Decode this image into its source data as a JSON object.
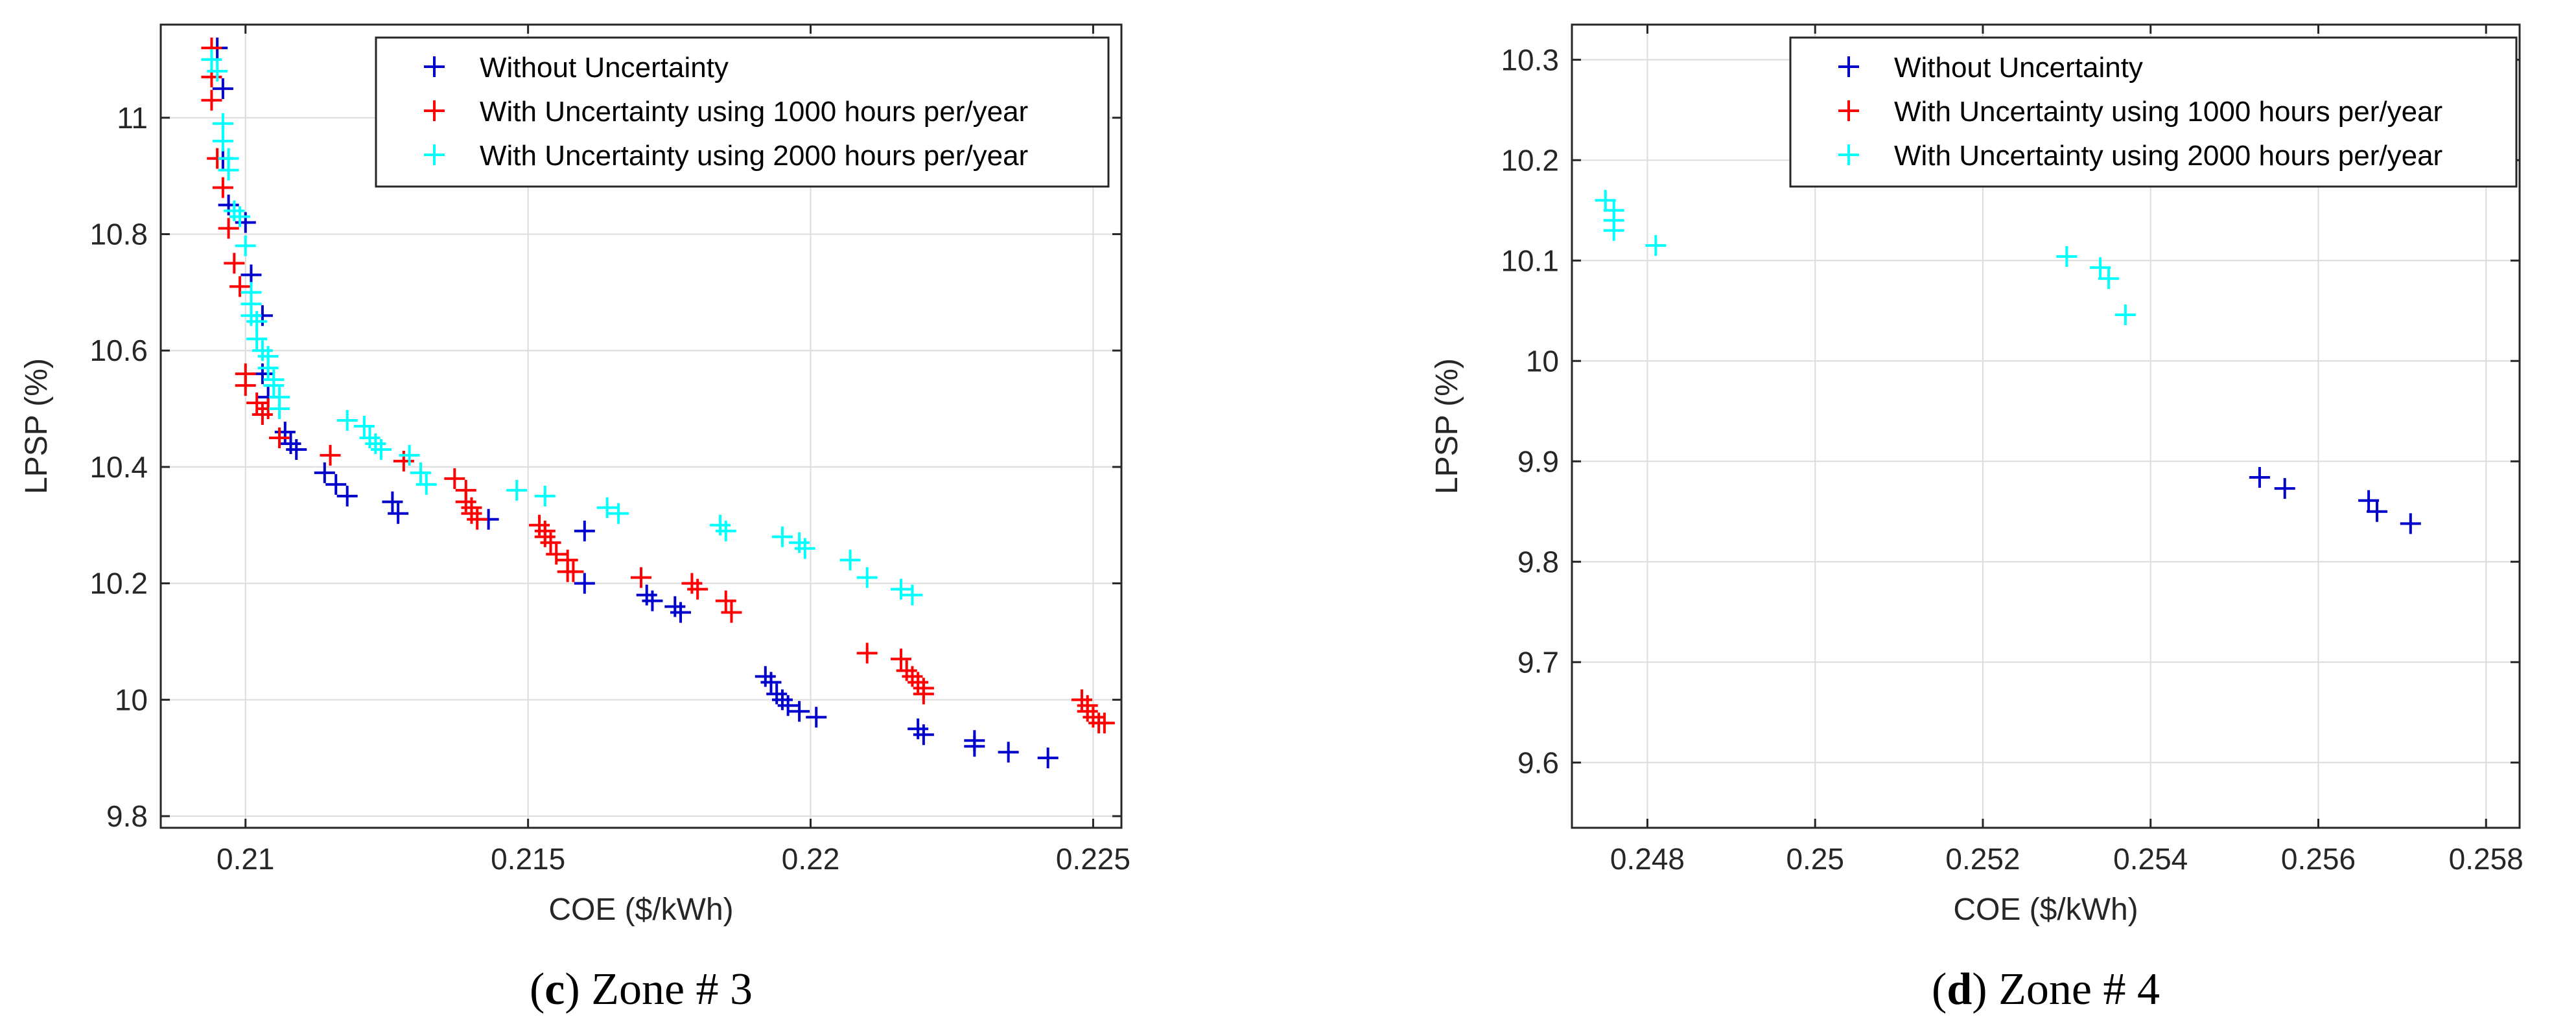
{
  "figure": {
    "legend_labels": [
      "Without Uncertainty",
      "With Uncertainty using 1000 hours per/year",
      "With Uncertainty using 2000 hours per/year"
    ],
    "series_colors": [
      "#0000cc",
      "#ff0000",
      "#00ffff"
    ]
  },
  "chart_data": [
    {
      "type": "scatter",
      "caption": {
        "letter": "c",
        "text": "Zone # 3"
      },
      "xlabel": "COE ($/kWh)",
      "ylabel": "LPSP (%)",
      "xlim": [
        0.2085,
        0.2255
      ],
      "ylim": [
        9.78,
        11.16
      ],
      "xticks": [
        0.21,
        0.215,
        0.22,
        0.225
      ],
      "xtick_labels": [
        "0.21",
        "0.215",
        "0.22",
        "0.225"
      ],
      "yticks": [
        9.8,
        10,
        10.2,
        10.4,
        10.6,
        10.8,
        11
      ],
      "ytick_labels": [
        "9.8",
        "10",
        "10.2",
        "10.4",
        "10.6",
        "10.8",
        "11"
      ],
      "grid": true,
      "legend_position": "top-right",
      "series": [
        {
          "name": "Without Uncertainty",
          "color": "#0000cc",
          "points": [
            [
              0.2095,
              11.12
            ],
            [
              0.2096,
              11.05
            ],
            [
              0.2096,
              10.93
            ],
            [
              0.2097,
              10.85
            ],
            [
              0.21,
              10.82
            ],
            [
              0.2101,
              10.73
            ],
            [
              0.2103,
              10.66
            ],
            [
              0.2103,
              10.56
            ],
            [
              0.2104,
              10.52
            ],
            [
              0.2107,
              10.46
            ],
            [
              0.2108,
              10.44
            ],
            [
              0.2109,
              10.43
            ],
            [
              0.2114,
              10.39
            ],
            [
              0.2116,
              10.37
            ],
            [
              0.2118,
              10.35
            ],
            [
              0.2126,
              10.34
            ],
            [
              0.2127,
              10.32
            ],
            [
              0.2143,
              10.31
            ],
            [
              0.216,
              10.29
            ],
            [
              0.216,
              10.2
            ],
            [
              0.2171,
              10.18
            ],
            [
              0.2172,
              10.17
            ],
            [
              0.2176,
              10.16
            ],
            [
              0.2177,
              10.15
            ],
            [
              0.2192,
              10.04
            ],
            [
              0.2193,
              10.03
            ],
            [
              0.2194,
              10.01
            ],
            [
              0.2195,
              10.0
            ],
            [
              0.2196,
              9.99
            ],
            [
              0.2198,
              9.98
            ],
            [
              0.2201,
              9.97
            ],
            [
              0.2219,
              9.95
            ],
            [
              0.222,
              9.94
            ],
            [
              0.2229,
              9.93
            ],
            [
              0.2229,
              9.92
            ],
            [
              0.2235,
              9.91
            ],
            [
              0.2242,
              9.9
            ]
          ]
        },
        {
          "name": "With Uncertainty using 1000 hours per/year",
          "color": "#ff0000",
          "points": [
            [
              0.2094,
              11.12
            ],
            [
              0.2094,
              11.07
            ],
            [
              0.2094,
              11.03
            ],
            [
              0.2095,
              10.93
            ],
            [
              0.2096,
              10.88
            ],
            [
              0.2097,
              10.81
            ],
            [
              0.2098,
              10.75
            ],
            [
              0.2099,
              10.71
            ],
            [
              0.21,
              10.56
            ],
            [
              0.21,
              10.54
            ],
            [
              0.2102,
              10.51
            ],
            [
              0.2103,
              10.49
            ],
            [
              0.2104,
              10.5
            ],
            [
              0.2106,
              10.45
            ],
            [
              0.2115,
              10.42
            ],
            [
              0.2128,
              10.41
            ],
            [
              0.2137,
              10.38
            ],
            [
              0.2139,
              10.36
            ],
            [
              0.2139,
              10.34
            ],
            [
              0.214,
              10.33
            ],
            [
              0.214,
              10.32
            ],
            [
              0.2141,
              10.31
            ],
            [
              0.2152,
              10.3
            ],
            [
              0.2153,
              10.29
            ],
            [
              0.2153,
              10.28
            ],
            [
              0.2154,
              10.27
            ],
            [
              0.2155,
              10.25
            ],
            [
              0.2157,
              10.24
            ],
            [
              0.2157,
              10.22
            ],
            [
              0.2158,
              10.22
            ],
            [
              0.217,
              10.21
            ],
            [
              0.2179,
              10.2
            ],
            [
              0.218,
              10.19
            ],
            [
              0.2185,
              10.17
            ],
            [
              0.2186,
              10.15
            ],
            [
              0.221,
              10.08
            ],
            [
              0.2216,
              10.07
            ],
            [
              0.2217,
              10.05
            ],
            [
              0.2218,
              10.04
            ],
            [
              0.2219,
              10.03
            ],
            [
              0.222,
              10.02
            ],
            [
              0.222,
              10.01
            ],
            [
              0.2248,
              10.0
            ],
            [
              0.2249,
              9.99
            ],
            [
              0.2249,
              9.98
            ],
            [
              0.225,
              9.97
            ],
            [
              0.2251,
              9.96
            ],
            [
              0.2252,
              9.96
            ]
          ]
        },
        {
          "name": "With Uncertainty using 2000 hours per/year",
          "color": "#00ffff",
          "points": [
            [
              0.2094,
              11.1
            ],
            [
              0.2095,
              11.08
            ],
            [
              0.2096,
              10.99
            ],
            [
              0.2096,
              10.96
            ],
            [
              0.2097,
              10.93
            ],
            [
              0.2097,
              10.91
            ],
            [
              0.2098,
              10.84
            ],
            [
              0.2099,
              10.83
            ],
            [
              0.21,
              10.78
            ],
            [
              0.2101,
              10.7
            ],
            [
              0.2101,
              10.68
            ],
            [
              0.2101,
              10.66
            ],
            [
              0.2102,
              10.65
            ],
            [
              0.2102,
              10.62
            ],
            [
              0.2103,
              10.6
            ],
            [
              0.2104,
              10.59
            ],
            [
              0.2104,
              10.57
            ],
            [
              0.2105,
              10.55
            ],
            [
              0.2105,
              10.54
            ],
            [
              0.2106,
              10.52
            ],
            [
              0.2106,
              10.5
            ],
            [
              0.2118,
              10.48
            ],
            [
              0.2121,
              10.47
            ],
            [
              0.2122,
              10.45
            ],
            [
              0.2123,
              10.44
            ],
            [
              0.2124,
              10.43
            ],
            [
              0.2129,
              10.42
            ],
            [
              0.2131,
              10.39
            ],
            [
              0.2132,
              10.37
            ],
            [
              0.2148,
              10.36
            ],
            [
              0.2153,
              10.35
            ],
            [
              0.2164,
              10.33
            ],
            [
              0.2166,
              10.32
            ],
            [
              0.2184,
              10.3
            ],
            [
              0.2185,
              10.29
            ],
            [
              0.2195,
              10.28
            ],
            [
              0.2198,
              10.27
            ],
            [
              0.2199,
              10.26
            ],
            [
              0.2207,
              10.24
            ],
            [
              0.221,
              10.21
            ],
            [
              0.2216,
              10.19
            ],
            [
              0.2218,
              10.18
            ]
          ]
        }
      ]
    },
    {
      "type": "scatter",
      "caption": {
        "letter": "d",
        "text": "Zone # 4"
      },
      "xlabel": "COE ($/kWh)",
      "ylabel": "LPSP (%)",
      "xlim": [
        0.2471,
        0.2584
      ],
      "ylim": [
        9.535,
        10.335
      ],
      "xticks": [
        0.248,
        0.25,
        0.252,
        0.254,
        0.256,
        0.258
      ],
      "xtick_labels": [
        "0.248",
        "0.25",
        "0.252",
        "0.254",
        "0.256",
        "0.258"
      ],
      "yticks": [
        9.6,
        9.7,
        9.8,
        9.9,
        10,
        10.1,
        10.2,
        10.3
      ],
      "ytick_labels": [
        "9.6",
        "9.7",
        "9.8",
        "9.9",
        "10",
        "10.1",
        "10.2",
        "10.3"
      ],
      "grid": true,
      "legend_position": "top-right",
      "series": [
        {
          "name": "Without Uncertainty",
          "color": "#0000cc",
          "points": [
            [
              0.2553,
              9.884
            ],
            [
              0.2556,
              9.873
            ],
            [
              0.2566,
              9.861
            ],
            [
              0.2567,
              9.85
            ],
            [
              0.2571,
              9.838
            ]
          ]
        },
        {
          "name": "With Uncertainty using 1000 hours per/year",
          "color": "#ff0000",
          "points": []
        },
        {
          "name": "With Uncertainty using 2000 hours per/year",
          "color": "#00ffff",
          "points": [
            [
              0.2475,
              10.16
            ],
            [
              0.2476,
              10.15
            ],
            [
              0.2476,
              10.14
            ],
            [
              0.2476,
              10.13
            ],
            [
              0.2481,
              10.115
            ],
            [
              0.253,
              10.104
            ],
            [
              0.2534,
              10.093
            ],
            [
              0.2535,
              10.082
            ],
            [
              0.2537,
              10.046
            ]
          ]
        }
      ]
    }
  ]
}
